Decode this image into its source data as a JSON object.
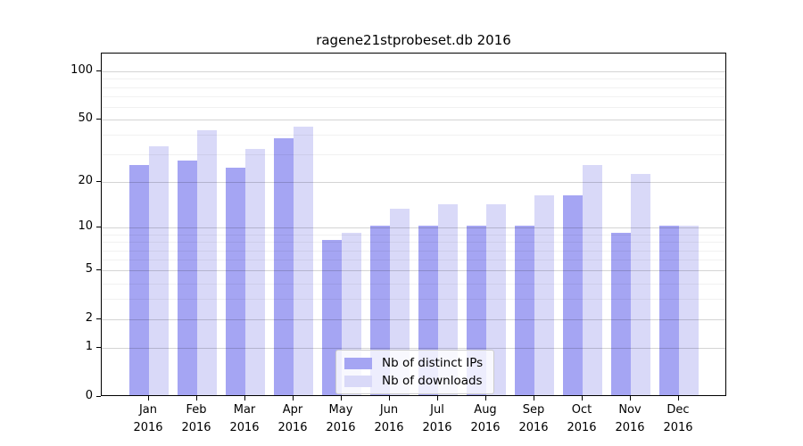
{
  "title": "ragene21stprobeset.db 2016",
  "legend": {
    "items": [
      {
        "label": "Nb of distinct IPs",
        "color": "#a5a5f3"
      },
      {
        "label": "Nb of downloads",
        "color": "#d9d9f8"
      }
    ]
  },
  "axes": {
    "y_major_ticks": [
      100,
      50,
      20,
      10,
      5,
      2,
      1,
      0
    ],
    "y_minor_ticks": [
      90,
      80,
      70,
      60,
      40,
      30,
      9,
      8,
      7,
      6,
      4,
      3
    ],
    "year_label": "2016"
  },
  "chart_data": {
    "type": "bar",
    "title": "ragene21stprobeset.db 2016",
    "scale": "log1p",
    "categories": [
      "Jan",
      "Feb",
      "Mar",
      "Apr",
      "May",
      "Jun",
      "Jul",
      "Aug",
      "Sep",
      "Oct",
      "Nov",
      "Dec"
    ],
    "year": "2016",
    "series": [
      {
        "name": "Nb of distinct IPs",
        "color": "#a5a5f3",
        "values": [
          25,
          27,
          24,
          37,
          8,
          10,
          10,
          10,
          10,
          16,
          9,
          10
        ]
      },
      {
        "name": "Nb of downloads",
        "color": "#d9d9f8",
        "values": [
          33,
          42,
          32,
          44,
          9,
          13,
          14,
          14,
          16,
          25,
          22,
          10
        ]
      }
    ],
    "ylim": [
      0,
      100
    ],
    "y_ticks": [
      0,
      1,
      2,
      5,
      10,
      20,
      50,
      100
    ],
    "grid": true,
    "legend_position": "lower-center"
  }
}
